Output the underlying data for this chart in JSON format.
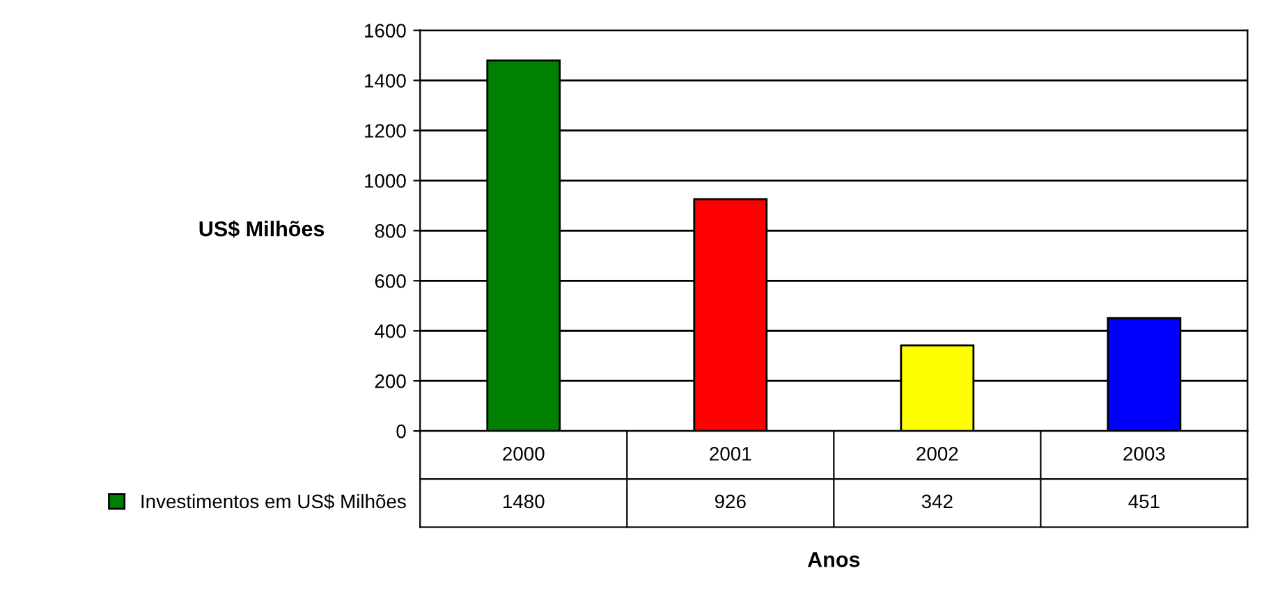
{
  "chart_data": {
    "type": "bar",
    "ylabel": "US$ Milhões",
    "xlabel": "Anos",
    "categories": [
      "2000",
      "2001",
      "2002",
      "2003"
    ],
    "series": [
      {
        "name": "Investimentos em US$ Milhões",
        "values": [
          1480,
          926,
          342,
          451
        ],
        "colors": [
          "#008000",
          "#ff0000",
          "#ffff00",
          "#0000ff"
        ]
      }
    ],
    "ylim": [
      0,
      1600
    ],
    "yticks": [
      0,
      200,
      400,
      600,
      800,
      1000,
      1200,
      1400,
      1600
    ],
    "grid": "y",
    "legend": "bottom left",
    "data_labels": true
  }
}
